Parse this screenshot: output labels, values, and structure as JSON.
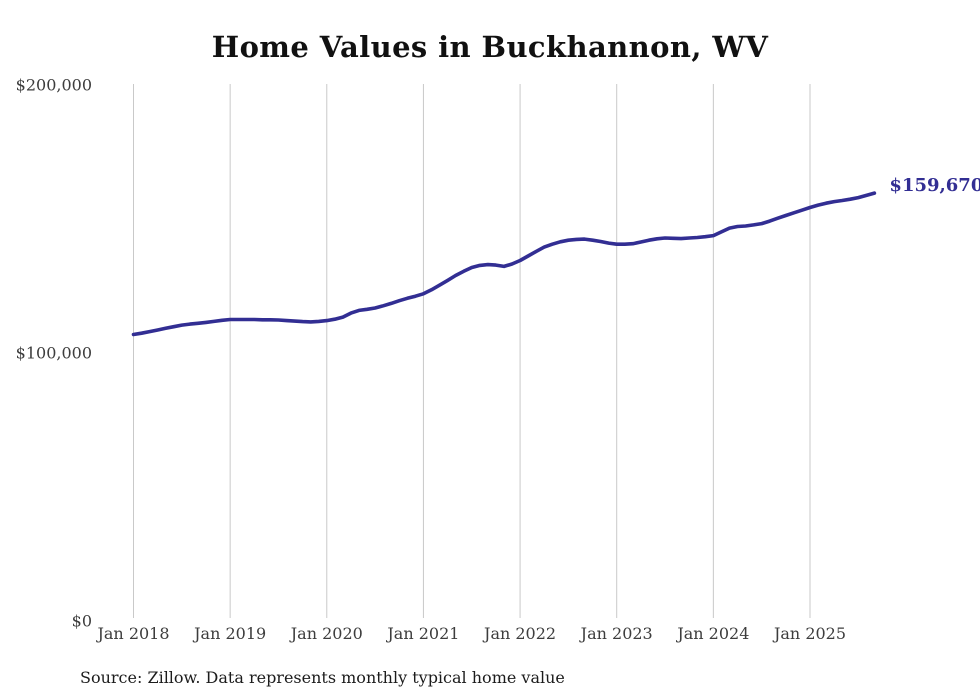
{
  "title": "Home Values in Buckhannon, WV",
  "source_note": "Source: Zillow. Data represents monthly typical home value",
  "colors": {
    "line": "#322e93",
    "gridline": "#c9c9c9",
    "tick_label": "#3d3d3d",
    "title": "#111111",
    "source": "#1c1c1c"
  },
  "chart_data": {
    "type": "line",
    "title": "Home Values in Buckhannon, WV",
    "xlabel": "",
    "ylabel": "",
    "ylim": [
      0,
      200000
    ],
    "grid": "vertical-only",
    "legend": "none",
    "x_start": "Jan 2018",
    "x_end": "Sep 2025",
    "x_ticks": [
      {
        "label": "Jan 2018",
        "month_index": 0
      },
      {
        "label": "Jan 2019",
        "month_index": 12
      },
      {
        "label": "Jan 2020",
        "month_index": 24
      },
      {
        "label": "Jan 2021",
        "month_index": 36
      },
      {
        "label": "Jan 2022",
        "month_index": 48
      },
      {
        "label": "Jan 2023",
        "month_index": 60
      },
      {
        "label": "Jan 2024",
        "month_index": 72
      },
      {
        "label": "Jan 2025",
        "month_index": 84
      }
    ],
    "y_ticks": [
      {
        "label": "$0",
        "value": 0
      },
      {
        "label": "$100,000",
        "value": 100000
      },
      {
        "label": "$200,000",
        "value": 200000
      }
    ],
    "end_label": "$159,670",
    "end_value": 159670,
    "series": [
      {
        "name": "Monthly typical home value",
        "values": [
          106900,
          107400,
          108000,
          108600,
          109200,
          109800,
          110400,
          110800,
          111100,
          111400,
          111800,
          112200,
          112500,
          112500,
          112500,
          112500,
          112400,
          112400,
          112300,
          112100,
          111900,
          111700,
          111600,
          111800,
          112100,
          112600,
          113400,
          114900,
          115900,
          116300,
          116800,
          117600,
          118500,
          119500,
          120400,
          121200,
          122100,
          123600,
          125300,
          127100,
          128900,
          130500,
          131900,
          132700,
          133000,
          132800,
          132300,
          133200,
          134500,
          136200,
          137900,
          139500,
          140600,
          141500,
          142100,
          142400,
          142500,
          142100,
          141600,
          141000,
          140600,
          140600,
          140800,
          141400,
          142100,
          142600,
          142900,
          142800,
          142700,
          142900,
          143100,
          143400,
          143800,
          145200,
          146600,
          147200,
          147400,
          147800,
          148300,
          149200,
          150300,
          151300,
          152300,
          153300,
          154300,
          155200,
          155900,
          156500,
          156900,
          157400,
          158000,
          158800,
          159670
        ]
      }
    ]
  }
}
